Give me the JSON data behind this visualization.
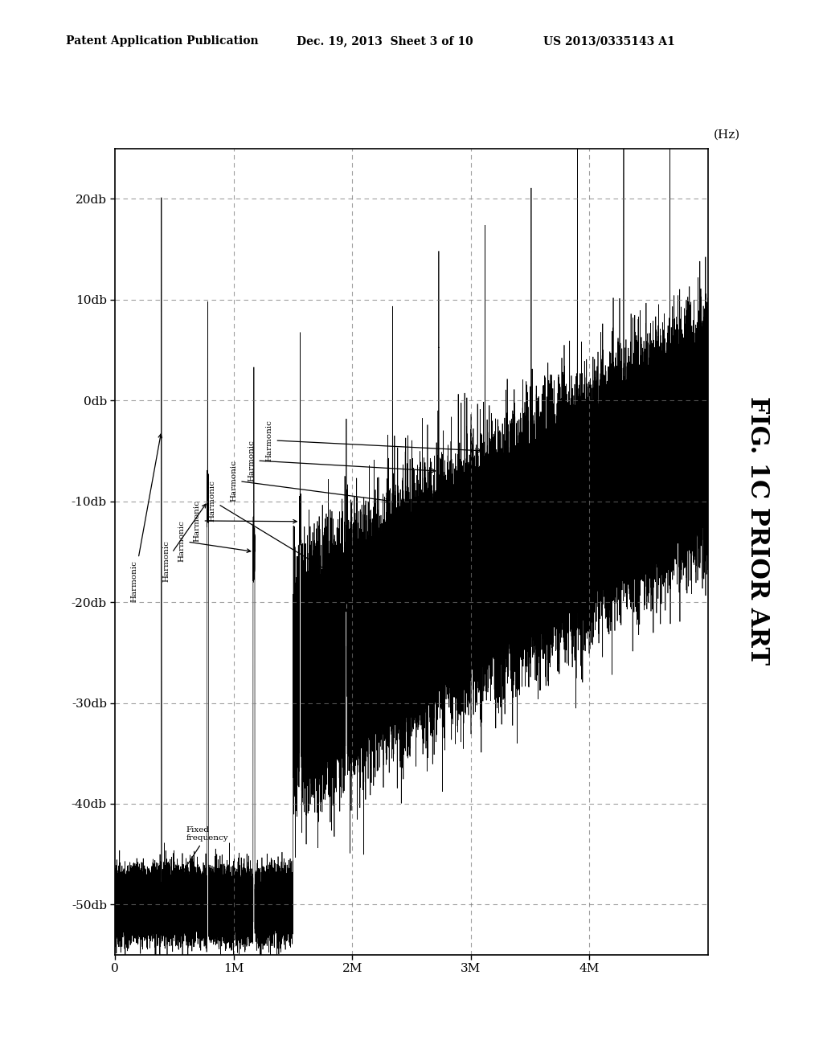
{
  "title": "FIG. 1C PRIOR ART",
  "header_left": "Patent Application Publication",
  "header_center": "Dec. 19, 2013  Sheet 3 of 10",
  "header_right": "US 2013/0335143 A1",
  "freq_label": "(Hz)",
  "ytick_labels_left": [
    "20db",
    "10db",
    "0db",
    "-10db",
    "-20db",
    "-30db",
    "-40db",
    "-50db"
  ],
  "ytick_values": [
    20,
    10,
    0,
    -10,
    -20,
    -30,
    -40,
    -50
  ],
  "xtick_labels": [
    "0",
    "1M",
    "2M",
    "3M",
    "4M"
  ],
  "xtick_values": [
    0,
    1000000,
    2000000,
    3000000,
    4000000
  ],
  "xmin": 0,
  "xmax": 5000000,
  "ymin": -55,
  "ymax": 25,
  "background_color": "#ffffff",
  "line_color": "#000000",
  "grid_color": "#777777",
  "switching_freq": 390000,
  "seed": 123
}
